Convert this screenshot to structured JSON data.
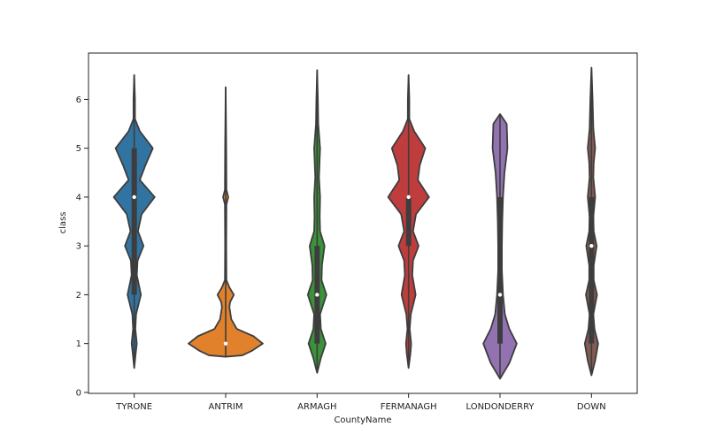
{
  "chart_data": {
    "type": "violin",
    "xlabel": "CountyName",
    "ylabel": "class",
    "ylim": [
      -0.02,
      6.95
    ],
    "yticks": [
      0,
      1,
      2,
      3,
      4,
      5,
      6
    ],
    "grid": false,
    "categories": [
      "TYRONE",
      "ANTRIM",
      "ARMAGH",
      "FERMANAGH",
      "LONDONDERRY",
      "DOWN"
    ],
    "violins": [
      {
        "category": "TYRONE",
        "color": "#3274a1",
        "median": 4,
        "q1": 2,
        "q3": 5,
        "profile": [
          [
            0.5,
            0
          ],
          [
            0.8,
            0.04
          ],
          [
            1,
            0.07
          ],
          [
            1.3,
            0.03
          ],
          [
            1.6,
            0.05
          ],
          [
            2,
            0.18
          ],
          [
            2.4,
            0.07
          ],
          [
            2.7,
            0.09
          ],
          [
            3,
            0.25
          ],
          [
            3.3,
            0.1
          ],
          [
            3.65,
            0.2
          ],
          [
            4,
            0.55
          ],
          [
            4.35,
            0.15
          ],
          [
            4.65,
            0.3
          ],
          [
            5,
            0.5
          ],
          [
            5.35,
            0.15
          ],
          [
            5.6,
            0.02
          ],
          [
            6,
            0.02
          ],
          [
            6.5,
            0
          ]
        ]
      },
      {
        "category": "ANTRIM",
        "color": "#e1812c",
        "median": 1,
        "q1": 1,
        "q3": 1,
        "profile": [
          [
            0.73,
            0
          ],
          [
            0.76,
            0.45
          ],
          [
            0.85,
            0.7
          ],
          [
            1,
            1
          ],
          [
            1.15,
            0.75
          ],
          [
            1.3,
            0.3
          ],
          [
            1.5,
            0.15
          ],
          [
            1.75,
            0.1
          ],
          [
            1.85,
            0.12
          ],
          [
            2,
            0.22
          ],
          [
            2.15,
            0.1
          ],
          [
            2.3,
            0.02
          ],
          [
            3,
            0.015
          ],
          [
            3.85,
            0.02
          ],
          [
            4,
            0.07
          ],
          [
            4.15,
            0.02
          ],
          [
            5,
            0.015
          ],
          [
            6.25,
            0
          ]
        ]
      },
      {
        "category": "ARMAGH",
        "color": "#3a923a",
        "median": 2,
        "q1": 1,
        "q3": 3,
        "profile": [
          [
            0.4,
            0
          ],
          [
            0.7,
            0.1
          ],
          [
            1,
            0.23
          ],
          [
            1.3,
            0.1
          ],
          [
            1.6,
            0.08
          ],
          [
            2,
            0.25
          ],
          [
            2.3,
            0.12
          ],
          [
            2.6,
            0.13
          ],
          [
            3,
            0.2
          ],
          [
            3.3,
            0.08
          ],
          [
            3.6,
            0.07
          ],
          [
            4,
            0.08
          ],
          [
            4.4,
            0.05
          ],
          [
            5,
            0.08
          ],
          [
            5.5,
            0.03
          ],
          [
            6,
            0.02
          ],
          [
            6.6,
            0
          ]
        ]
      },
      {
        "category": "FERMANAGH",
        "color": "#c03d3e",
        "median": 4,
        "q1": 3,
        "q3": 4,
        "profile": [
          [
            0.5,
            0
          ],
          [
            0.8,
            0.05
          ],
          [
            1,
            0.07
          ],
          [
            1.3,
            0.03
          ],
          [
            1.6,
            0.06
          ],
          [
            2,
            0.19
          ],
          [
            2.4,
            0.1
          ],
          [
            2.7,
            0.12
          ],
          [
            3,
            0.27
          ],
          [
            3.3,
            0.12
          ],
          [
            3.65,
            0.2
          ],
          [
            4,
            0.55
          ],
          [
            4.35,
            0.25
          ],
          [
            4.65,
            0.3
          ],
          [
            5,
            0.45
          ],
          [
            5.35,
            0.15
          ],
          [
            5.6,
            0.02
          ],
          [
            6,
            0.02
          ],
          [
            6.5,
            0
          ]
        ]
      },
      {
        "category": "LONDONDERRY",
        "color": "#9372b2",
        "median": 2,
        "q1": 1,
        "q3": 4,
        "profile": [
          [
            0.28,
            0
          ],
          [
            0.6,
            0.25
          ],
          [
            1,
            0.45
          ],
          [
            1.3,
            0.25
          ],
          [
            1.6,
            0.13
          ],
          [
            2,
            0.08
          ],
          [
            2.5,
            0.05
          ],
          [
            3,
            0.05
          ],
          [
            3.5,
            0.06
          ],
          [
            4,
            0.08
          ],
          [
            4.5,
            0.12
          ],
          [
            5,
            0.2
          ],
          [
            5.5,
            0.18
          ],
          [
            5.7,
            0
          ]
        ]
      },
      {
        "category": "DOWN",
        "color": "#845b53",
        "median": 3,
        "q1": 1,
        "q3": 4,
        "profile": [
          [
            0.35,
            0
          ],
          [
            0.65,
            0.1
          ],
          [
            1,
            0.18
          ],
          [
            1.3,
            0.08
          ],
          [
            1.6,
            0.05
          ],
          [
            2,
            0.15
          ],
          [
            2.3,
            0.06
          ],
          [
            2.6,
            0.06
          ],
          [
            3,
            0.14
          ],
          [
            3.3,
            0.06
          ],
          [
            3.6,
            0.05
          ],
          [
            4,
            0.1
          ],
          [
            4.4,
            0.05
          ],
          [
            4.7,
            0.06
          ],
          [
            5,
            0.1
          ],
          [
            5.4,
            0.05
          ],
          [
            6,
            0.03
          ],
          [
            6.65,
            0
          ]
        ]
      }
    ]
  }
}
